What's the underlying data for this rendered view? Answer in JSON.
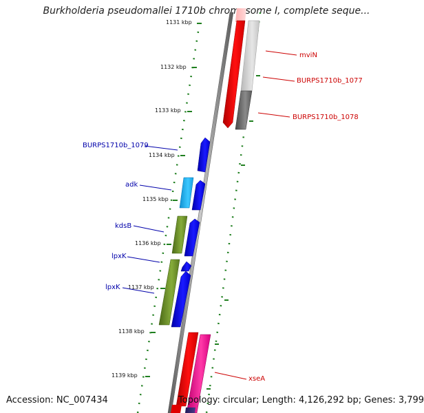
{
  "title": "Burkholderia pseudomallei 1710b chromosome I, complete seque...",
  "footer": {
    "accession": "Accession: NC_007434",
    "topology": "Topology: circular; Length: 4,126,292 bp; Genes: 3,799"
  },
  "ticks": [
    "1131 kbp",
    "1132 kbp",
    "1133 kbp",
    "1134 kbp",
    "1135 kbp",
    "1136 kbp",
    "1137 kbp",
    "1138 kbp",
    "1139 kbp"
  ],
  "genes": [
    {
      "name": "mviN",
      "color": "#cc0000",
      "strand": "forward"
    },
    {
      "name": "BURPS1710b_1077",
      "color": "#cc0000",
      "strand": "forward"
    },
    {
      "name": "BURPS1710b_1078",
      "color": "#cc0000",
      "strand": "forward"
    },
    {
      "name": "BURPS1710b_1079",
      "color": "#0000aa",
      "strand": "reverse"
    },
    {
      "name": "adk",
      "color": "#0000aa",
      "strand": "reverse"
    },
    {
      "name": "kdsB",
      "color": "#0000aa",
      "strand": "reverse"
    },
    {
      "name": "lpxK",
      "color": "#0000aa",
      "strand": "reverse"
    },
    {
      "name": "lpxK",
      "color": "#0000aa",
      "strand": "reverse"
    },
    {
      "name": "xseA",
      "color": "#cc0000",
      "strand": "forward"
    }
  ]
}
